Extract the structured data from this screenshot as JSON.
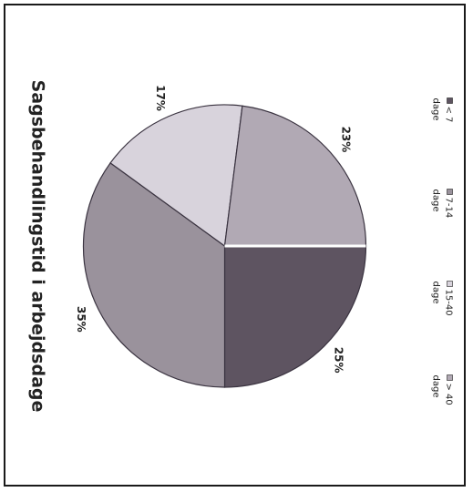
{
  "chart_data": {
    "type": "pie",
    "title": "Sagsbehandlingstid i arbejdsdage",
    "slices": [
      {
        "label": "< 7 dage",
        "value": 25,
        "display": "25%",
        "color": "#5e5461"
      },
      {
        "label": "7-14 dage",
        "value": 35,
        "display": "35%",
        "color": "#9a929c"
      },
      {
        "label": "15-40 dage",
        "value": 17,
        "display": "17%",
        "color": "#d8d3dc"
      },
      {
        "label": "> 40 dage",
        "value": 23,
        "display": "23%",
        "color": "#b1a9b4"
      }
    ],
    "legend": {
      "position": "bottom",
      "items": [
        {
          "top": "< 7",
          "bottom": "dage"
        },
        {
          "top": "7-14",
          "bottom": "dage"
        },
        {
          "top": "15-40",
          "bottom": "dage"
        },
        {
          "top": "> 40",
          "bottom": "dage"
        }
      ]
    },
    "orientation": "rotated 90° clockwise"
  }
}
